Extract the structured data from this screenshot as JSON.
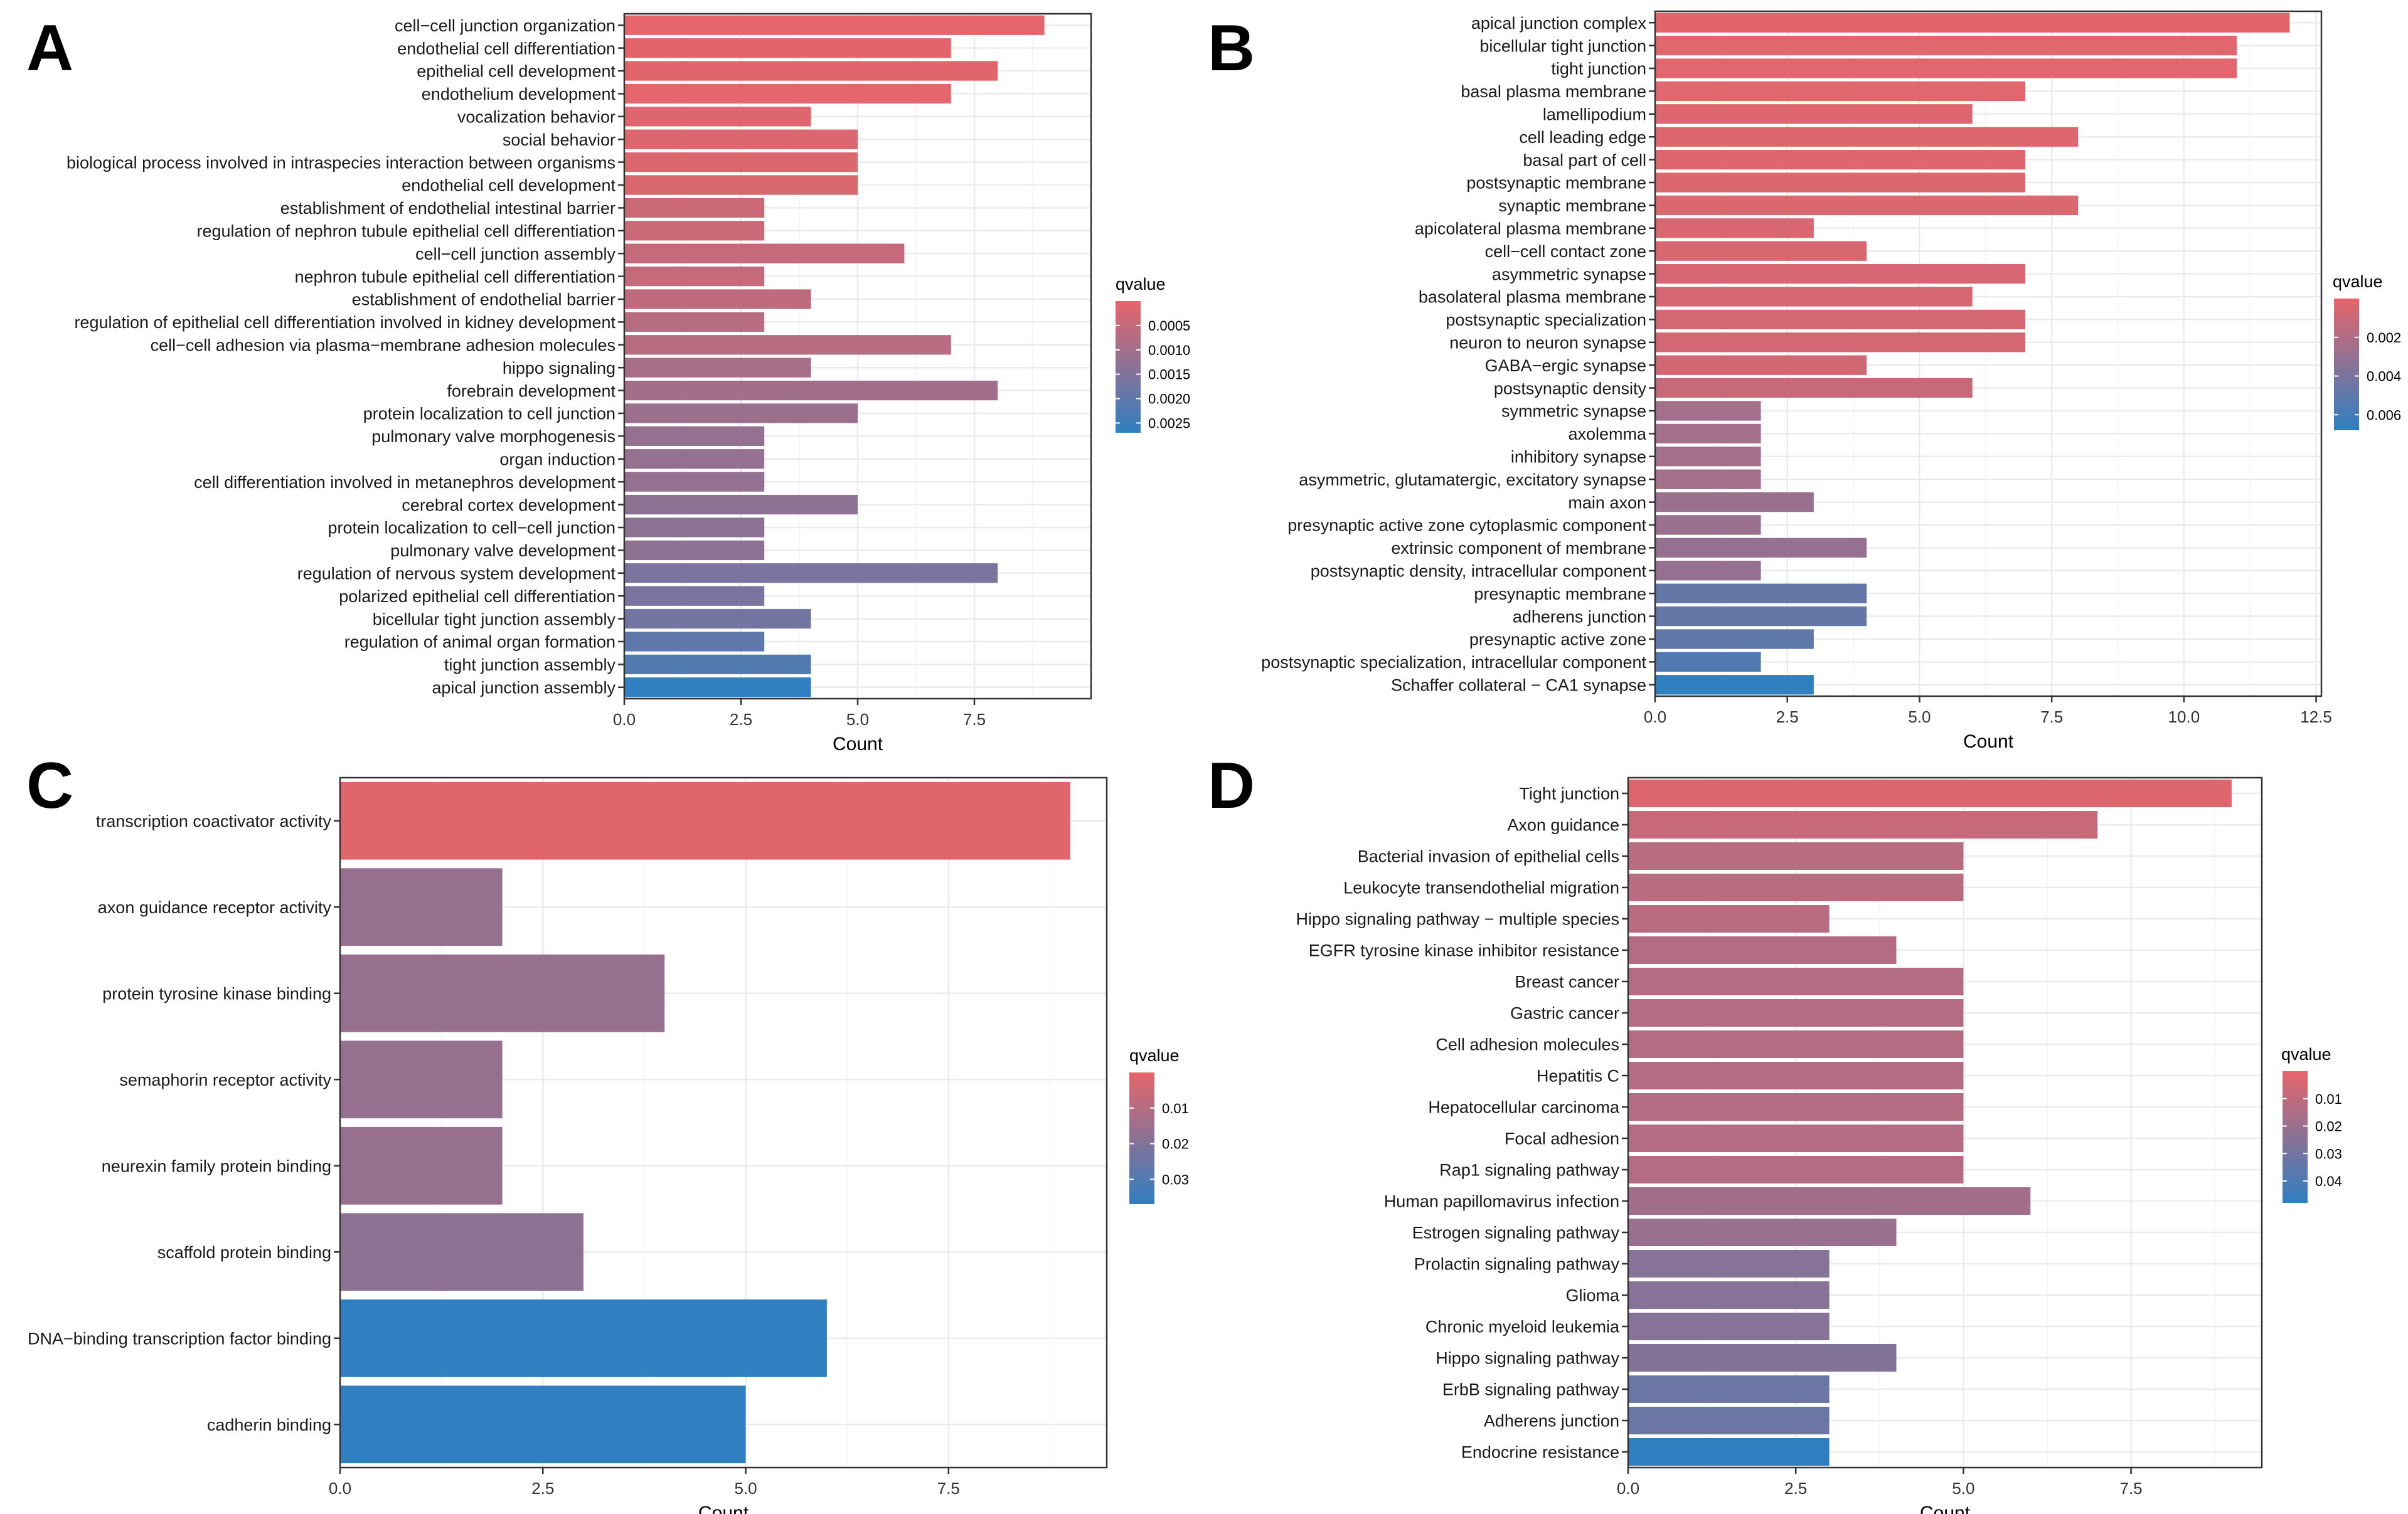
{
  "figure_title": "",
  "colors": {
    "low_q": "#e6656a",
    "high_q": "#2f7fc1",
    "grid": "#ebebeb",
    "panel_border": "#333333"
  },
  "chart_data": [
    {
      "panel_label": "A",
      "type": "bar",
      "orientation": "horizontal",
      "xlabel": "Count",
      "ylabel": "",
      "xlim": [
        0,
        10
      ],
      "xticks": [
        "0.0",
        "2.5",
        "5.0",
        "7.5"
      ],
      "xtick_values": [
        0,
        2.5,
        5,
        7.5
      ],
      "categories": [
        "cell−cell junction organization",
        "endothelial cell differentiation",
        "epithelial cell development",
        "endothelium development",
        "vocalization behavior",
        "social behavior",
        "biological process involved in intraspecies interaction between organisms",
        "endothelial cell development",
        "establishment of endothelial intestinal barrier",
        "regulation of nephron tubule epithelial cell differentiation",
        "cell−cell junction assembly",
        "nephron tubule epithelial cell differentiation",
        "establishment of endothelial barrier",
        "regulation of epithelial cell differentiation involved in kidney development",
        "cell−cell adhesion via plasma−membrane adhesion molecules",
        "hippo signaling",
        "forebrain development",
        "protein localization to cell junction",
        "pulmonary valve morphogenesis",
        "organ induction",
        "cell differentiation involved in metanephros development",
        "cerebral cortex development",
        "protein localization to cell−cell junction",
        "pulmonary valve development",
        "regulation of nervous system development",
        "polarized epithelial cell differentiation",
        "bicellular tight junction assembly",
        "regulation of animal organ formation",
        "tight junction assembly",
        "apical junction assembly"
      ],
      "values": [
        9,
        7,
        8,
        7,
        4,
        5,
        5,
        5,
        3,
        3,
        6,
        3,
        4,
        3,
        7,
        4,
        8,
        5,
        3,
        3,
        3,
        5,
        3,
        3,
        8,
        3,
        4,
        3,
        4,
        4
      ],
      "color_by": "qvalue",
      "qvalues": [
        2e-05,
        4e-05,
        5e-05,
        6e-05,
        0.00012,
        0.00016,
        0.00016,
        0.0002,
        0.0004,
        0.0004,
        0.0005,
        0.0005,
        0.0006,
        0.0007,
        0.0007,
        0.0009,
        0.001,
        0.0011,
        0.0012,
        0.0012,
        0.0012,
        0.0013,
        0.0013,
        0.0013,
        0.0016,
        0.0016,
        0.0017,
        0.002,
        0.0022,
        0.0027
      ],
      "colorbar": {
        "title": "qvalue",
        "range": [
          0.0,
          0.0027
        ],
        "ticks": [
          "0.0005",
          "0.0010",
          "0.0015",
          "0.0020",
          "0.0025"
        ],
        "tick_values": [
          0.0005,
          0.001,
          0.0015,
          0.002,
          0.0025
        ]
      }
    },
    {
      "panel_label": "B",
      "type": "bar",
      "orientation": "horizontal",
      "xlabel": "Count",
      "ylabel": "",
      "xlim": [
        0,
        12.6
      ],
      "xticks": [
        "0.0",
        "2.5",
        "5.0",
        "7.5",
        "10.0",
        "12.5"
      ],
      "xtick_values": [
        0,
        2.5,
        5,
        7.5,
        10,
        12.5
      ],
      "categories": [
        "apical junction complex",
        "bicellular tight junction",
        "tight junction",
        "basal plasma membrane",
        "lamellipodium",
        "cell leading edge",
        "basal part of cell",
        "postsynaptic membrane",
        "synaptic membrane",
        "apicolateral plasma membrane",
        "cell−cell contact zone",
        "asymmetric synapse",
        "basolateral plasma membrane",
        "postsynaptic specialization",
        "neuron to neuron synapse",
        "GABA−ergic synapse",
        "postsynaptic density",
        "symmetric synapse",
        "axolemma",
        "inhibitory synapse",
        "asymmetric, glutamatergic, excitatory synapse",
        "main axon",
        "presynaptic active zone cytoplasmic component",
        "extrinsic component of membrane",
        "postsynaptic density, intracellular component",
        "presynaptic membrane",
        "adherens junction",
        "presynaptic active zone",
        "postsynaptic specialization, intracellular component",
        "Schaffer collateral − CA1 synapse"
      ],
      "values": [
        12,
        11,
        11,
        7,
        6,
        8,
        7,
        7,
        8,
        3,
        4,
        7,
        6,
        7,
        7,
        4,
        6,
        2,
        2,
        2,
        2,
        3,
        2,
        4,
        2,
        4,
        4,
        3,
        2,
        3
      ],
      "color_by": "qvalue",
      "qvalues": [
        0.0001,
        0.0002,
        0.0002,
        0.0002,
        0.0003,
        0.0003,
        0.0003,
        0.0004,
        0.0004,
        0.0005,
        0.0005,
        0.0006,
        0.0006,
        0.0007,
        0.0007,
        0.0008,
        0.0012,
        0.0025,
        0.0025,
        0.0025,
        0.0025,
        0.0028,
        0.0028,
        0.003,
        0.003,
        0.0048,
        0.0048,
        0.005,
        0.0055,
        0.0068
      ],
      "colorbar": {
        "title": "qvalue",
        "range": [
          0.0,
          0.0068
        ],
        "ticks": [
          "0.002",
          "0.004",
          "0.006"
        ],
        "tick_values": [
          0.002,
          0.004,
          0.006
        ]
      }
    },
    {
      "panel_label": "C",
      "type": "bar",
      "orientation": "horizontal",
      "xlabel": "Count",
      "ylabel": "",
      "xlim": [
        0,
        9.45
      ],
      "xticks": [
        "0.0",
        "2.5",
        "5.0",
        "7.5"
      ],
      "xtick_values": [
        0,
        2.5,
        5,
        7.5
      ],
      "categories": [
        "transcription coactivator activity",
        "axon guidance receptor activity",
        "protein tyrosine kinase binding",
        "semaphorin receptor activity",
        "neurexin family protein binding",
        "scaffold protein binding",
        "DNA−binding transcription factor binding",
        "cadherin binding"
      ],
      "values": [
        9,
        2,
        4,
        2,
        2,
        3,
        6,
        5
      ],
      "color_by": "qvalue",
      "qvalues": [
        0.001,
        0.016,
        0.016,
        0.016,
        0.016,
        0.018,
        0.037,
        0.037
      ],
      "colorbar": {
        "title": "qvalue",
        "range": [
          0.0,
          0.037
        ],
        "ticks": [
          "0.01",
          "0.02",
          "0.03"
        ],
        "tick_values": [
          0.01,
          0.02,
          0.03
        ]
      }
    },
    {
      "panel_label": "D",
      "type": "bar",
      "orientation": "horizontal",
      "xlabel": "Count",
      "ylabel": "",
      "xlim": [
        0,
        9.45
      ],
      "xticks": [
        "0.0",
        "2.5",
        "5.0",
        "7.5"
      ],
      "xtick_values": [
        0,
        2.5,
        5,
        7.5
      ],
      "categories": [
        "Tight junction",
        "Axon guidance",
        "Bacterial invasion of epithelial cells",
        "Leukocyte transendothelial migration",
        "Hippo signaling pathway − multiple species",
        "EGFR tyrosine kinase inhibitor resistance",
        "Breast cancer",
        "Gastric cancer",
        "Cell adhesion molecules",
        "Hepatitis C",
        "Hepatocellular carcinoma",
        "Focal adhesion",
        "Rap1 signaling pathway",
        "Human papillomavirus infection",
        "Estrogen signaling pathway",
        "Prolactin signaling pathway",
        "Glioma",
        "Chronic myeloid leukemia",
        "Hippo signaling pathway",
        "ErbB signaling pathway",
        "Adherens junction",
        "Endocrine resistance"
      ],
      "values": [
        9,
        7,
        5,
        5,
        3,
        4,
        5,
        5,
        5,
        5,
        5,
        5,
        5,
        6,
        4,
        3,
        3,
        3,
        4,
        3,
        3,
        3
      ],
      "color_by": "qvalue",
      "qvalues": [
        0.002,
        0.008,
        0.012,
        0.012,
        0.012,
        0.013,
        0.013,
        0.013,
        0.013,
        0.013,
        0.013,
        0.013,
        0.013,
        0.018,
        0.02,
        0.025,
        0.025,
        0.025,
        0.026,
        0.032,
        0.032,
        0.048
      ],
      "colorbar": {
        "title": "qvalue",
        "range": [
          0.0,
          0.048
        ],
        "ticks": [
          "0.01",
          "0.02",
          "0.03",
          "0.04"
        ],
        "tick_values": [
          0.01,
          0.02,
          0.03,
          0.04
        ]
      }
    }
  ]
}
